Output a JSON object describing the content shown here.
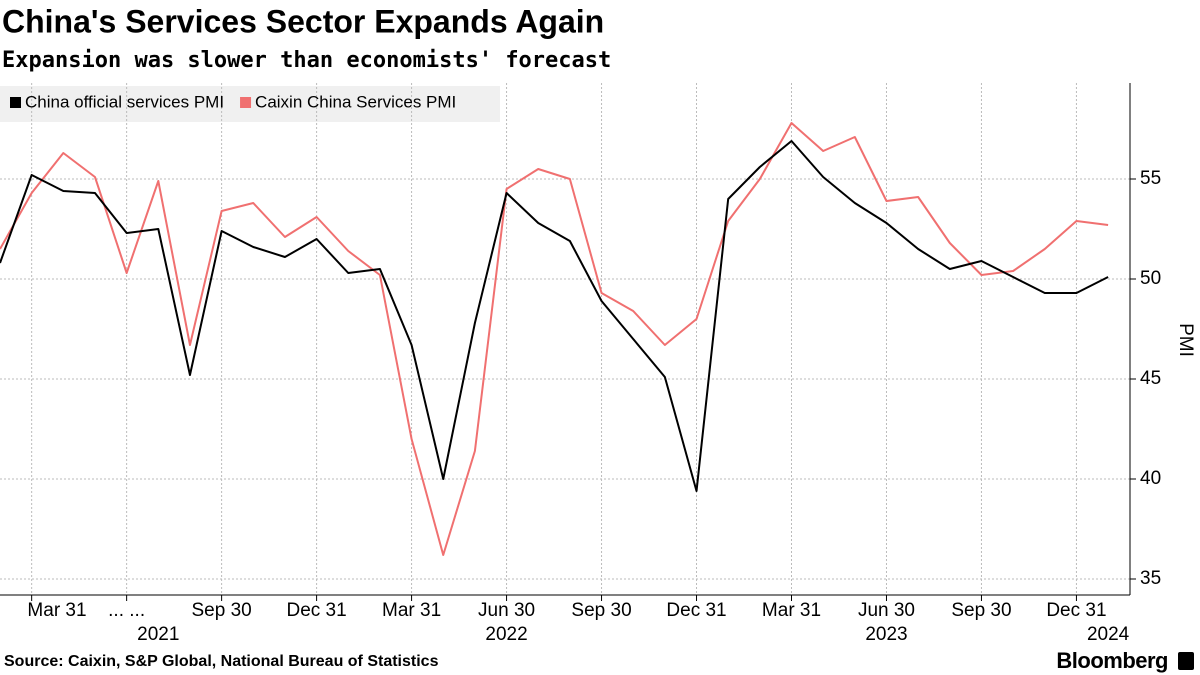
{
  "chart_data": {
    "type": "line",
    "title": "China's Services Sector Expands Again",
    "subtitle": "Expansion was slower than economists' forecast",
    "y_label": "PMI",
    "source": "Source: Caixin, S&P Global, National Bureau of Statistics",
    "brand": "Bloomberg",
    "x": [
      "2021-02-28",
      "2021-03-31",
      "2021-04-30",
      "2021-05-31",
      "2021-06-30",
      "2021-07-31",
      "2021-08-31",
      "2021-09-30",
      "2021-10-31",
      "2021-11-30",
      "2021-12-31",
      "2022-01-31",
      "2022-02-28",
      "2022-03-31",
      "2022-04-30",
      "2022-05-31",
      "2022-06-30",
      "2022-07-31",
      "2022-08-31",
      "2022-09-30",
      "2022-10-31",
      "2022-11-30",
      "2022-12-31",
      "2023-01-31",
      "2023-02-28",
      "2023-03-31",
      "2023-04-30",
      "2023-05-31",
      "2023-06-30",
      "2023-07-31",
      "2023-08-31",
      "2023-09-30",
      "2023-10-31",
      "2023-11-30",
      "2023-12-31",
      "2024-01-31"
    ],
    "series": [
      {
        "name": "China official services PMI",
        "color": "#000000",
        "values": [
          50.8,
          55.2,
          54.4,
          54.3,
          52.3,
          52.5,
          45.2,
          52.4,
          51.6,
          51.1,
          52.0,
          50.3,
          50.5,
          46.7,
          40.0,
          47.8,
          54.3,
          52.8,
          51.9,
          48.9,
          47.0,
          45.1,
          39.4,
          54.0,
          55.6,
          56.9,
          55.1,
          53.8,
          52.8,
          51.5,
          50.5,
          50.9,
          50.1,
          49.3,
          49.3,
          50.1
        ]
      },
      {
        "name": "Caixin China Services PMI",
        "color": "#f07070",
        "values": [
          51.5,
          54.3,
          56.3,
          55.1,
          50.3,
          54.9,
          46.7,
          53.4,
          53.8,
          52.1,
          53.1,
          51.4,
          50.2,
          42.0,
          36.2,
          41.4,
          54.5,
          55.5,
          55.0,
          49.3,
          48.4,
          46.7,
          48.0,
          52.9,
          55.0,
          57.8,
          56.4,
          57.1,
          53.9,
          54.1,
          51.8,
          50.2,
          50.4,
          51.5,
          52.9,
          52.7
        ]
      }
    ],
    "xticks": [
      {
        "value": "2021-03-31",
        "label": "Mar 31"
      },
      {
        "value": "2021-06-30",
        "label": "... ..."
      },
      {
        "value": "2021-09-30",
        "label": "Sep 30"
      },
      {
        "value": "2021-12-31",
        "label": "Dec 31"
      },
      {
        "value": "2022-03-31",
        "label": "Mar 31"
      },
      {
        "value": "2022-06-30",
        "label": "Jun 30"
      },
      {
        "value": "2022-09-30",
        "label": "Sep 30"
      },
      {
        "value": "2022-12-31",
        "label": "Dec 31"
      },
      {
        "value": "2023-03-31",
        "label": "Mar 31"
      },
      {
        "value": "2023-06-30",
        "label": "Jun 30"
      },
      {
        "value": "2023-09-30",
        "label": "Sep 30"
      },
      {
        "value": "2023-12-31",
        "label": "Dec 31"
      }
    ],
    "year_labels": [
      {
        "value": "2021-07-31",
        "label": "2021"
      },
      {
        "value": "2022-06-30",
        "label": "2022"
      },
      {
        "value": "2023-06-30",
        "label": "2023"
      },
      {
        "value": "2024-01-31",
        "label": "2024"
      }
    ],
    "ylim": [
      34.2,
      59.8
    ],
    "yticks": [
      35,
      40,
      45,
      50,
      55
    ],
    "grid": true,
    "legend": "top-left"
  }
}
